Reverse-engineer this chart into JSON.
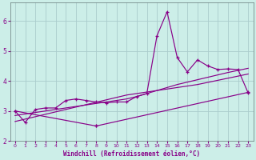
{
  "xlabel": "Windchill (Refroidissement éolien,°C)",
  "bg_color": "#cceee8",
  "grid_color": "#aacccc",
  "line_color": "#880088",
  "x": [
    0,
    1,
    2,
    3,
    4,
    5,
    6,
    7,
    8,
    9,
    10,
    11,
    12,
    13,
    14,
    15,
    16,
    17,
    18,
    19,
    20,
    21,
    22,
    23
  ],
  "s1": [
    3.0,
    2.62,
    3.05,
    3.1,
    3.1,
    3.35,
    3.4,
    3.35,
    3.3,
    3.27,
    3.3,
    3.3,
    3.48,
    3.58,
    5.5,
    6.3,
    4.78,
    4.3,
    4.7,
    4.5,
    4.38,
    4.4,
    4.38,
    3.6
  ],
  "s2": [
    3.0,
    null,
    null,
    null,
    null,
    null,
    null,
    null,
    2.5,
    null,
    null,
    null,
    null,
    null,
    null,
    null,
    null,
    null,
    null,
    null,
    null,
    null,
    null,
    3.62
  ],
  "trend1": [
    2.85,
    2.9,
    2.95,
    3.0,
    3.05,
    3.1,
    3.15,
    3.2,
    3.25,
    3.3,
    3.35,
    3.4,
    3.48,
    3.58,
    3.68,
    3.78,
    3.88,
    3.96,
    4.04,
    4.12,
    4.2,
    4.28,
    4.35,
    4.42
  ],
  "trend2": [
    2.65,
    2.73,
    2.81,
    2.89,
    2.97,
    3.05,
    3.13,
    3.21,
    3.29,
    3.37,
    3.45,
    3.53,
    3.58,
    3.63,
    3.68,
    3.73,
    3.78,
    3.83,
    3.88,
    3.95,
    4.02,
    4.09,
    4.16,
    4.23
  ],
  "ylim": [
    2.0,
    6.6
  ],
  "xlim": [
    -0.5,
    23.5
  ],
  "yticks": [
    2,
    3,
    4,
    5,
    6
  ],
  "xticks": [
    0,
    1,
    2,
    3,
    4,
    5,
    6,
    7,
    8,
    9,
    10,
    11,
    12,
    13,
    14,
    15,
    16,
    17,
    18,
    19,
    20,
    21,
    22,
    23
  ]
}
